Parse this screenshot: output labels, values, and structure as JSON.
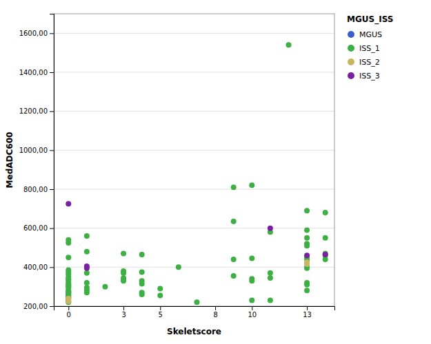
{
  "chart_data": {
    "type": "scatter",
    "xlabel": "Skeletscore",
    "ylabel": "MedADC600",
    "legend_title": "MGUS_ISS",
    "xlim": [
      -0.8,
      14.5
    ],
    "ylim": [
      200,
      1700
    ],
    "xticks": [
      0,
      3,
      5,
      8,
      10,
      13
    ],
    "yticks": [
      {
        "value": 200,
        "label": "200,00"
      },
      {
        "value": 400,
        "label": "400,00"
      },
      {
        "value": 600,
        "label": "600,00"
      },
      {
        "value": 800,
        "label": "800,00"
      },
      {
        "value": 1000,
        "label": "1000,00"
      },
      {
        "value": 1200,
        "label": "1200,00"
      },
      {
        "value": 1400,
        "label": "1400,00"
      },
      {
        "value": 1600,
        "label": "1600,00"
      }
    ],
    "grid": "y",
    "legend": "right",
    "series": [
      {
        "name": "MGUS",
        "color": "#3a5fcd",
        "x": [
          0
        ],
        "values": [
          275
        ]
      },
      {
        "name": "ISS_1",
        "color": "#3cb043",
        "x": [
          0,
          0,
          0,
          0,
          0,
          0,
          0,
          0,
          0,
          0,
          0,
          0,
          0,
          0,
          0,
          0,
          0,
          0,
          0,
          0,
          0,
          0,
          0,
          0,
          0,
          0,
          0,
          1,
          1,
          1,
          1,
          1,
          1,
          1,
          2,
          3,
          3,
          3,
          3,
          3,
          3,
          4,
          4,
          4,
          4,
          4,
          4,
          5,
          5,
          6,
          7,
          9,
          9,
          9,
          9,
          10,
          10,
          10,
          10,
          10,
          11,
          11,
          11,
          11,
          12,
          13,
          13,
          13,
          13,
          13,
          13,
          13,
          13,
          13,
          13,
          13,
          13,
          14,
          14,
          14,
          14,
          14
        ],
        "values": [
          540,
          525,
          450,
          385,
          375,
          365,
          350,
          340,
          335,
          325,
          315,
          310,
          305,
          300,
          295,
          285,
          275,
          270,
          265,
          260,
          255,
          250,
          245,
          240,
          235,
          225,
          220,
          560,
          480,
          370,
          320,
          295,
          280,
          270,
          300,
          470,
          380,
          370,
          345,
          335,
          330,
          465,
          375,
          330,
          315,
          270,
          260,
          290,
          255,
          400,
          220,
          810,
          635,
          440,
          355,
          820,
          445,
          340,
          330,
          230,
          580,
          370,
          345,
          230,
          1540,
          690,
          590,
          550,
          520,
          510,
          450,
          440,
          400,
          395,
          320,
          310,
          280,
          680,
          550,
          470,
          460,
          440
        ]
      },
      {
        "name": "ISS_2",
        "color": "#c8b560",
        "x": [
          0,
          0,
          13,
          13
        ],
        "values": [
          240,
          225,
          425,
          415
        ]
      },
      {
        "name": "ISS_3",
        "color": "#7b1fa2",
        "x": [
          0,
          1,
          1,
          11,
          13,
          14
        ],
        "values": [
          725,
          405,
          395,
          600,
          460,
          465
        ]
      }
    ]
  }
}
